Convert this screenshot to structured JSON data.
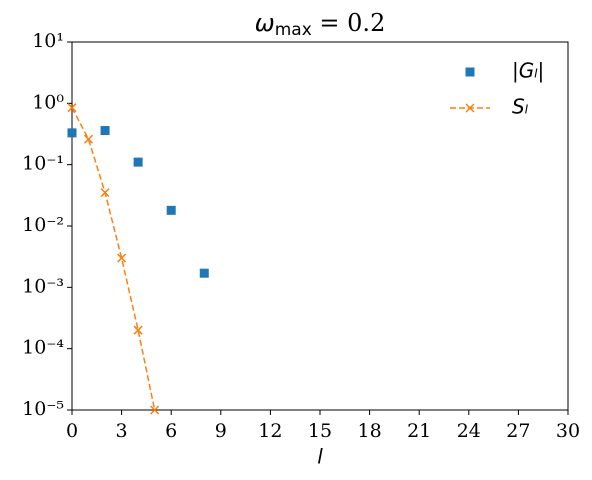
{
  "chart_data": {
    "type": "scatter-line",
    "title_parts": [
      "ω",
      "max",
      " = 0.2"
    ],
    "xlabel": "l",
    "xlim": [
      0,
      30
    ],
    "xticks": [
      0,
      3,
      6,
      9,
      12,
      15,
      18,
      21,
      24,
      27,
      30
    ],
    "ylim": [
      1e-05,
      10
    ],
    "yscale": "log",
    "yticks": [
      {
        "value": 1e-05,
        "label": "10⁻⁵"
      },
      {
        "value": 0.0001,
        "label": "10⁻⁴"
      },
      {
        "value": 0.001,
        "label": "10⁻³"
      },
      {
        "value": 0.01,
        "label": "10⁻²"
      },
      {
        "value": 0.1,
        "label": "10⁻¹"
      },
      {
        "value": 1,
        "label": "10⁰"
      },
      {
        "value": 10,
        "label": "10¹"
      }
    ],
    "legend": "upper right",
    "series": [
      {
        "name": "|Gₗ|",
        "color": "#1f77b4",
        "marker": "square",
        "linestyle": "none",
        "x": [
          0,
          2,
          4,
          6,
          8
        ],
        "values": [
          0.33,
          0.36,
          0.11,
          0.018,
          0.0017
        ]
      },
      {
        "name": "Sₗ",
        "color": "#ff7f0e",
        "marker": "x",
        "linestyle": "dashed",
        "x": [
          0,
          1,
          2,
          3,
          4,
          5
        ],
        "values": [
          0.85,
          0.26,
          0.035,
          0.003,
          0.0002,
          1e-05
        ]
      }
    ]
  }
}
